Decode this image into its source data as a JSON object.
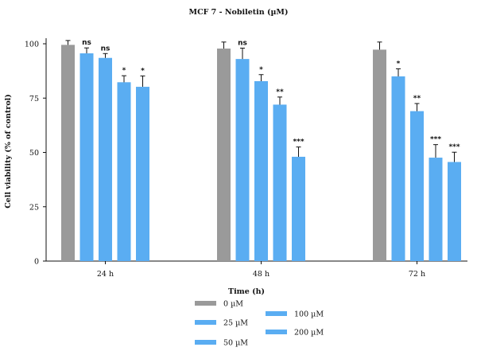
{
  "chart_data": {
    "type": "bar",
    "title": "MCF 7 - Nobiletin (µM)",
    "xlabel": "Time (h)",
    "ylabel": "Cell viability (% of control)",
    "ylim": [
      0,
      100
    ],
    "yticks": [
      0,
      25,
      50,
      75,
      100
    ],
    "grid": false,
    "legend_position": "bottom",
    "categories": [
      "24 h",
      "48 h",
      "72 h"
    ],
    "series": [
      {
        "name": "0 µM",
        "color": "#9a9a9a",
        "values": [
          99.5,
          97.8,
          97.3
        ],
        "errors": [
          2.0,
          3.0,
          3.5
        ],
        "significance": [
          "",
          "",
          ""
        ]
      },
      {
        "name": "25 µM",
        "color": "#5aadf2",
        "values": [
          95.6,
          93.0,
          85.0
        ],
        "errors": [
          2.5,
          5.0,
          3.5
        ],
        "significance": [
          "ns",
          "ns",
          "*"
        ]
      },
      {
        "name": "50 µM",
        "color": "#5aadf2",
        "values": [
          93.5,
          82.8,
          69.0
        ],
        "errors": [
          2.0,
          3.0,
          3.5
        ],
        "significance": [
          "ns",
          "*",
          "**"
        ]
      },
      {
        "name": "100 µM",
        "color": "#5aadf2",
        "values": [
          82.3,
          72.0,
          47.6
        ],
        "errors": [
          3.0,
          3.5,
          6.0
        ],
        "significance": [
          "*",
          "**",
          "***"
        ]
      },
      {
        "name": "200 µM",
        "color": "#5aadf2",
        "values": [
          80.2,
          48.0,
          45.6
        ],
        "errors": [
          5.0,
          4.5,
          4.5
        ],
        "significance": [
          "*",
          "***",
          "***"
        ]
      }
    ]
  }
}
